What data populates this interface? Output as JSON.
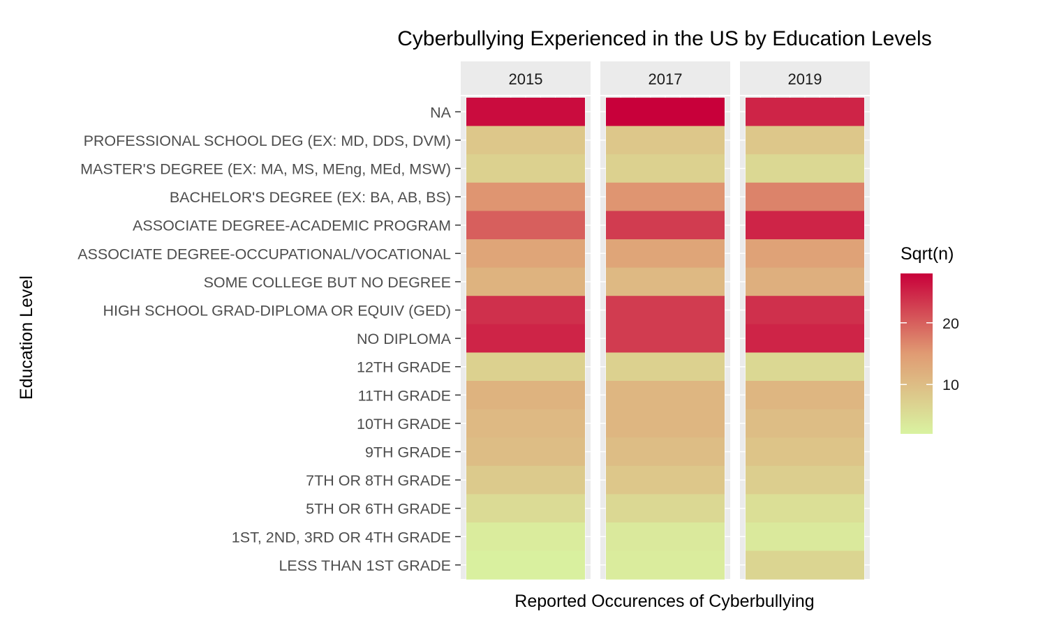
{
  "chart_data": {
    "type": "heatmap",
    "title": "Cyberbullying Experienced in the US by Education Levels",
    "xlabel": "Reported Occurences of Cyberbullying",
    "ylabel": "Education Level",
    "facets": [
      "2015",
      "2017",
      "2019"
    ],
    "categories": [
      "NA",
      "PROFESSIONAL SCHOOL DEG (EX: MD, DDS, DVM)",
      "MASTER'S DEGREE (EX: MA, MS, MEng, MEd, MSW)",
      "BACHELOR'S DEGREE (EX: BA, AB, BS)",
      "ASSOCIATE DEGREE-ACADEMIC PROGRAM",
      "ASSOCIATE DEGREE-OCCUPATIONAL/VOCATIONAL",
      "SOME COLLEGE BUT NO DEGREE",
      "HIGH SCHOOL GRAD-DIPLOMA OR EQUIV (GED)",
      "NO DIPLOMA",
      "12TH GRADE",
      "11TH GRADE",
      "10TH GRADE",
      "9TH GRADE",
      "7TH OR 8TH GRADE",
      "5TH OR 6TH GRADE",
      "1ST, 2ND, 3RD OR 4TH GRADE",
      "LESS THAN 1ST GRADE"
    ],
    "values": {
      "2015": [
        27,
        8.5,
        7,
        15.5,
        20,
        13.5,
        11.5,
        24,
        25,
        7,
        11.5,
        10.5,
        10,
        8,
        5.5,
        3,
        2.5
      ],
      "2017": [
        28,
        8.5,
        7,
        15.5,
        23,
        13.5,
        10.5,
        23,
        23,
        7,
        11,
        11,
        10,
        8.5,
        6,
        3.5,
        3
      ],
      "2019": [
        25,
        8.5,
        6,
        17,
        25,
        14,
        12,
        24,
        25,
        6,
        11,
        10,
        9,
        7.5,
        5,
        3.5,
        6.5
      ]
    },
    "legend": {
      "title": "Sqrt(n)",
      "ticks": [
        10,
        20
      ],
      "range": [
        2,
        28
      ],
      "low_color": "#d9f3a1",
      "mid_color": "#e09b73",
      "high_color": "#c8003a",
      "position": "right"
    }
  }
}
